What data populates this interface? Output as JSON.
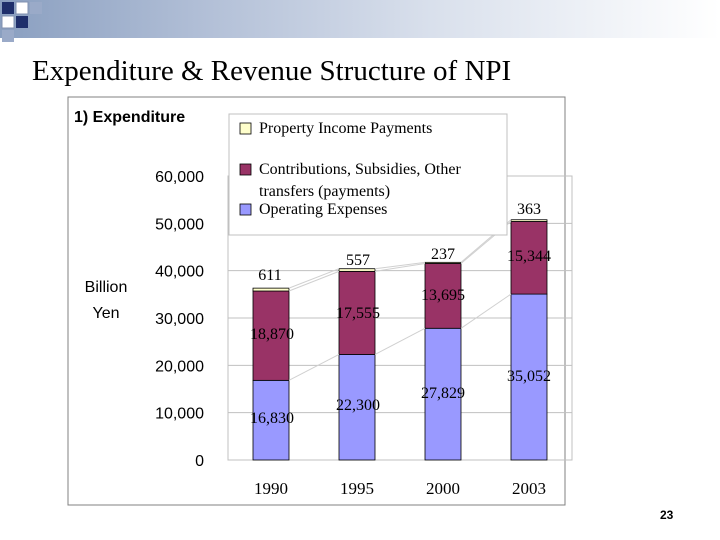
{
  "slide": {
    "title": "Expenditure & Revenue Structure of NPI",
    "page_number": "23"
  },
  "colors": {
    "operating": "#9999ff",
    "contributions": "#993366",
    "property": "#ffffcc",
    "gridline": "#c0c0c0"
  },
  "chart_data": {
    "type": "bar",
    "stacked": true,
    "title": "1) Expenditure",
    "ylabel_lines": [
      "Billion",
      "Yen"
    ],
    "xlabel": "",
    "ylim": [
      0,
      60000
    ],
    "yticks": [
      0,
      10000,
      20000,
      30000,
      40000,
      50000,
      60000
    ],
    "ytick_labels": [
      "0",
      "10,000",
      "20,000",
      "30,000",
      "40,000",
      "50,000",
      "60,000"
    ],
    "categories": [
      "1990",
      "1995",
      "2000",
      "2003"
    ],
    "series": [
      {
        "name": "Operating Expenses",
        "legend_lines": [
          "Operating Expenses"
        ],
        "values": [
          16830,
          22300,
          27829,
          35052
        ],
        "labels": [
          "16,830",
          "22,300",
          "27,829",
          "35,052"
        ]
      },
      {
        "name": "Contributions, Subsidies, Other transfers (payments)",
        "legend_lines": [
          "Contributions, Subsidies, Other",
          "transfers (payments)"
        ],
        "values": [
          18870,
          17555,
          13695,
          15344
        ],
        "labels": [
          "18,870",
          "17,555",
          "13,695",
          "15,344"
        ]
      },
      {
        "name": "Property Income Payments",
        "legend_lines": [
          "Property  Income Payments"
        ],
        "values": [
          611,
          557,
          237,
          363
        ],
        "labels": [
          "611",
          "557",
          "237",
          "363"
        ]
      }
    ],
    "legend_order": [
      2,
      1,
      0
    ],
    "legend_position": "top",
    "grid": true
  }
}
